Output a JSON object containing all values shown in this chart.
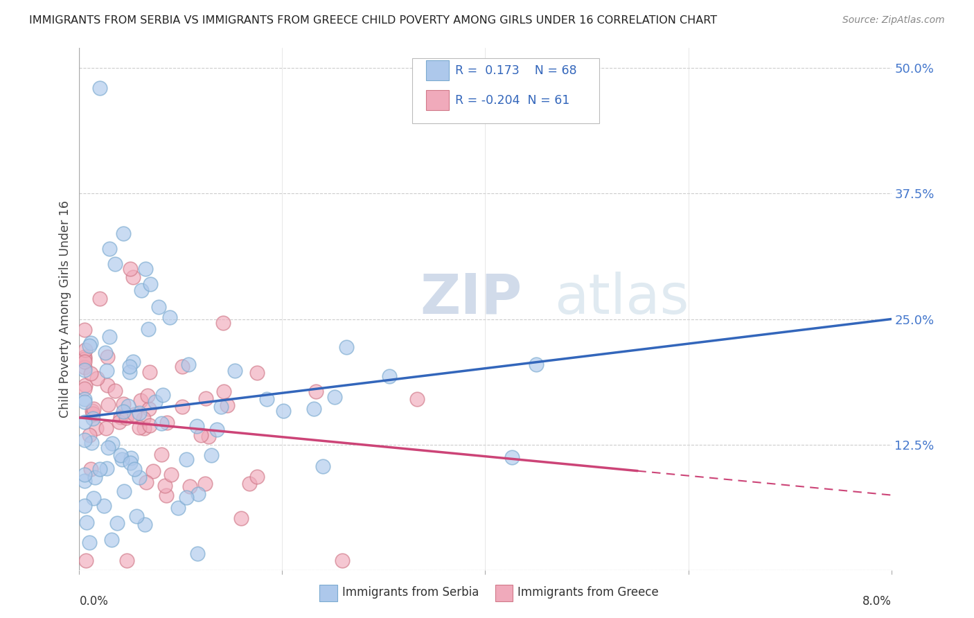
{
  "title": "IMMIGRANTS FROM SERBIA VS IMMIGRANTS FROM GREECE CHILD POVERTY AMONG GIRLS UNDER 16 CORRELATION CHART",
  "source": "Source: ZipAtlas.com",
  "ylabel": "Child Poverty Among Girls Under 16",
  "xlim": [
    0.0,
    8.0
  ],
  "ylim": [
    0.0,
    52.0
  ],
  "ytick_positions": [
    0.0,
    12.5,
    25.0,
    37.5,
    50.0
  ],
  "ytick_labels": [
    "",
    "12.5%",
    "25.0%",
    "37.5%",
    "50.0%"
  ],
  "serbia_color": "#adc8eb",
  "serbia_edge": "#7aaad0",
  "greece_color": "#f0aabb",
  "greece_edge": "#d07888",
  "serbia_R": 0.173,
  "serbia_N": 68,
  "greece_R": -0.204,
  "greece_N": 61,
  "serbia_line_color": "#3366bb",
  "greece_line_color": "#cc4477",
  "rylabel_color": "#4477cc",
  "watermark": "ZIPatlas",
  "serbia_line_x0": 0.0,
  "serbia_line_y0": 15.2,
  "serbia_line_x1": 8.0,
  "serbia_line_y1": 25.0,
  "greece_line_x0": 0.0,
  "greece_line_y0": 15.2,
  "greece_line_x1": 8.0,
  "greece_line_y1": 7.5,
  "greece_solid_end": 5.5
}
